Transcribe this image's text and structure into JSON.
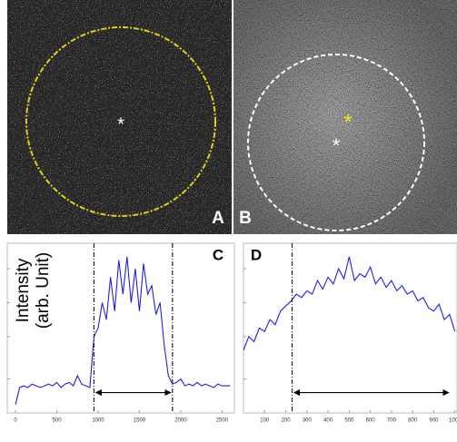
{
  "panels": [
    {
      "label": "A"
    },
    {
      "label": "B"
    }
  ],
  "chart_data": [
    {
      "type": "line",
      "label": "C",
      "ylabel": [
        "Intensity",
        "(arb. Unit)"
      ],
      "x": [
        0,
        50,
        100,
        150,
        200,
        250,
        300,
        350,
        400,
        450,
        500,
        550,
        600,
        650,
        700,
        750,
        800,
        850,
        900,
        950,
        1000,
        1050,
        1100,
        1150,
        1200,
        1250,
        1300,
        1350,
        1400,
        1450,
        1500,
        1550,
        1600,
        1650,
        1700,
        1750,
        1800,
        1850,
        1900,
        1950,
        2000,
        2050,
        2100,
        2150,
        2200,
        2250,
        2300,
        2350,
        2400,
        2450,
        2500,
        2550,
        2600
      ],
      "series": [
        {
          "color": "#1f1fe0",
          "values": [
            5,
            15,
            16,
            15,
            17,
            16,
            15,
            16,
            17,
            16,
            18,
            15,
            17,
            18,
            16,
            22,
            17,
            16,
            15,
            45,
            50,
            65,
            55,
            80,
            60,
            90,
            70,
            92,
            65,
            85,
            60,
            88,
            70,
            75,
            58,
            65,
            40,
            22,
            17,
            18,
            20,
            16,
            17,
            16,
            18,
            16,
            17,
            16,
            15,
            17,
            16,
            16,
            16
          ]
        }
      ],
      "xlim": [
        -100,
        2650
      ],
      "xticks": [
        0,
        500,
        1000,
        1500,
        2000,
        2500
      ],
      "ylim": [
        0,
        100
      ],
      "vlines": [
        950,
        1900
      ],
      "arrow": [
        950,
        1900
      ]
    },
    {
      "type": "line",
      "label": "D",
      "x": [
        0,
        25,
        50,
        75,
        100,
        125,
        150,
        175,
        200,
        225,
        250,
        275,
        300,
        325,
        350,
        375,
        400,
        425,
        450,
        475,
        500,
        525,
        550,
        575,
        600,
        625,
        650,
        675,
        700,
        725,
        750,
        775,
        800,
        825,
        850,
        875,
        900,
        925,
        950,
        975,
        1000
      ],
      "series": [
        {
          "color": "#1f1fe0",
          "values": [
            37,
            45,
            42,
            50,
            48,
            55,
            52,
            60,
            63,
            66,
            70,
            68,
            72,
            70,
            78,
            73,
            80,
            76,
            85,
            79,
            92,
            78,
            82,
            80,
            86,
            76,
            80,
            74,
            78,
            72,
            75,
            70,
            72,
            66,
            68,
            62,
            60,
            64,
            55,
            58,
            48
          ]
        }
      ],
      "xlim": [
        0,
        1010
      ],
      "xticks": [
        100,
        200,
        300,
        400,
        500,
        600,
        700,
        800,
        900,
        1000
      ],
      "ylim": [
        0,
        100
      ],
      "vlines": [
        230
      ],
      "arrow": [
        230,
        980
      ]
    }
  ]
}
